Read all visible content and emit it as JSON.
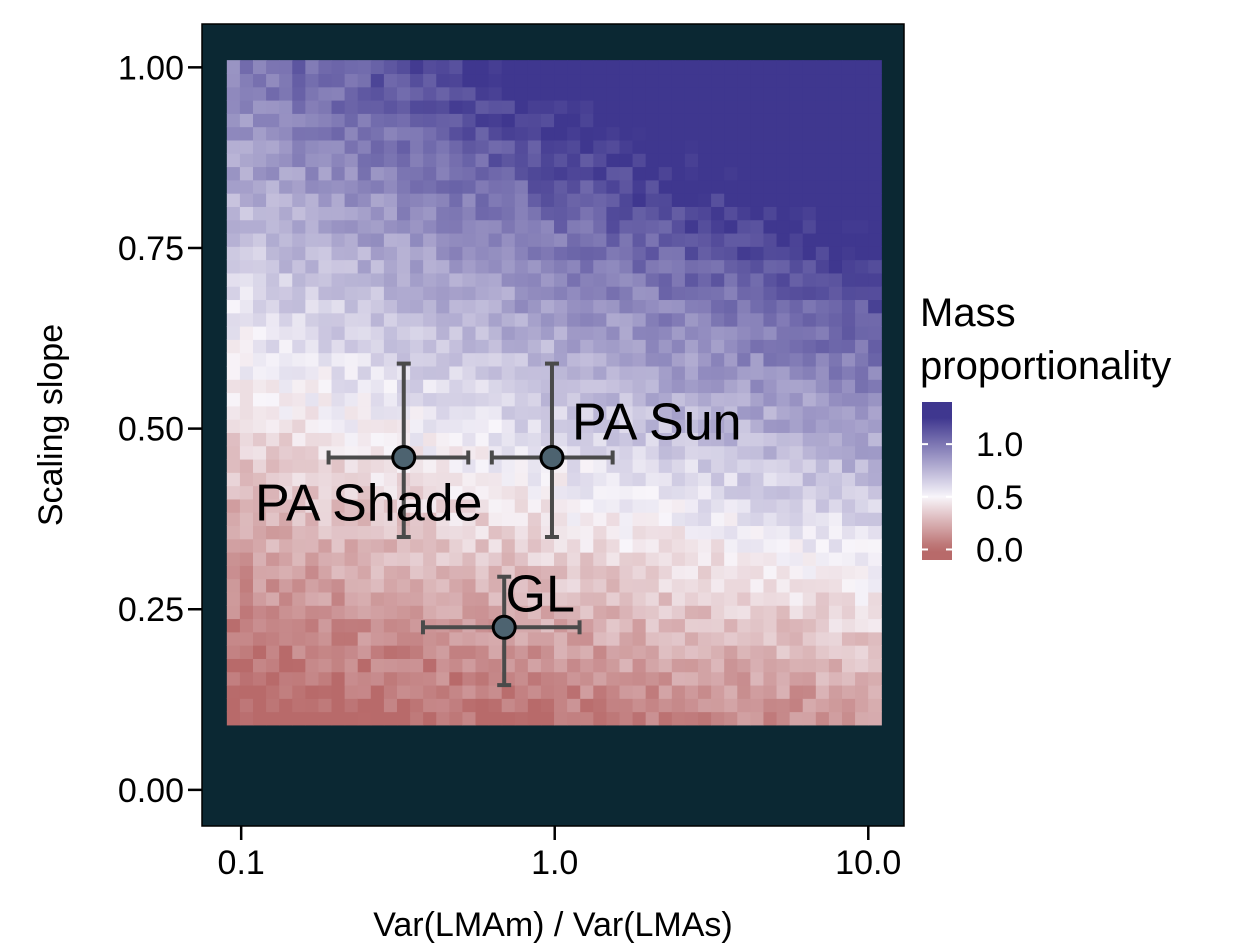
{
  "colors": {
    "panel_background": "#0b2833",
    "low": "#b86a6a",
    "mid": "#f8f5fa",
    "high": "#3f378f",
    "point_fill": "#4d6370",
    "errorbar": "#4a4a4a"
  },
  "chart_data": {
    "type": "heatmap",
    "xlabel": "Var(LMAm) / Var(LMAs)",
    "ylabel": "Scaling slope",
    "x_scale": "log10",
    "xlim": [
      0.075,
      13
    ],
    "ylim": [
      -0.05,
      1.06
    ],
    "x_ticks": [
      {
        "value": 0.1,
        "label": "0.1"
      },
      {
        "value": 1.0,
        "label": "1.0"
      },
      {
        "value": 10.0,
        "label": "10.0"
      }
    ],
    "y_ticks": [
      {
        "value": 0.0,
        "label": "0.00"
      },
      {
        "value": 0.25,
        "label": "0.25"
      },
      {
        "value": 0.5,
        "label": "0.50"
      },
      {
        "value": 0.75,
        "label": "0.75"
      },
      {
        "value": 1.0,
        "label": "1.00"
      }
    ],
    "grid": false,
    "heatmap": {
      "x_range": [
        0.09,
        11
      ],
      "y_range": [
        0.09,
        1.01
      ],
      "columns": 50,
      "rows": 50
    },
    "legend": {
      "title_line1": "Mass",
      "title_line2": "proportionality",
      "placement": "right",
      "range": [
        -0.1,
        1.4
      ],
      "ticks": [
        {
          "value": 0.0,
          "label": "0.0"
        },
        {
          "value": 0.5,
          "label": "0.5"
        },
        {
          "value": 1.0,
          "label": "1.0"
        }
      ]
    },
    "points": [
      {
        "label": "PA Shade",
        "x": 0.33,
        "y": 0.46,
        "xmin": 0.19,
        "xmax": 0.53,
        "ymin": 0.35,
        "ymax": 0.59,
        "label_pos": "below-left"
      },
      {
        "label": "PA Sun",
        "x": 0.98,
        "y": 0.46,
        "xmin": 0.63,
        "xmax": 1.53,
        "ymin": 0.35,
        "ymax": 0.59,
        "label_pos": "above-right"
      },
      {
        "label": "GL",
        "x": 0.69,
        "y": 0.225,
        "xmin": 0.38,
        "xmax": 1.2,
        "ymin": 0.145,
        "ymax": 0.295,
        "label_pos": "above"
      }
    ]
  }
}
